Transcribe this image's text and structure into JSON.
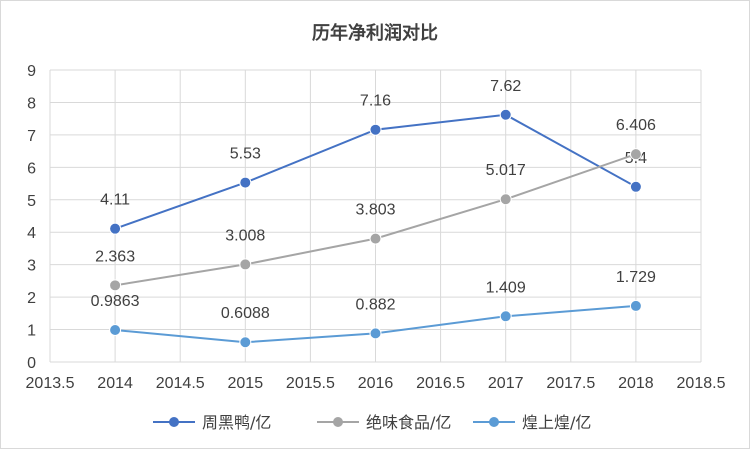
{
  "chart_data": {
    "type": "scatter",
    "title": "历年净利润对比",
    "xlabel": "",
    "ylabel": "",
    "xlim": [
      2013.5,
      2018.5
    ],
    "ylim": [
      0,
      9
    ],
    "x_ticks": [
      "2013.5",
      "2014",
      "2014.5",
      "2015",
      "2015.5",
      "2016",
      "2016.5",
      "2017",
      "2017.5",
      "2018",
      "2018.5"
    ],
    "y_ticks": [
      "0",
      "1",
      "2",
      "3",
      "4",
      "5",
      "6",
      "7",
      "8",
      "9"
    ],
    "grid": "vertical and horizontal",
    "legend_position": "bottom",
    "series": [
      {
        "name": "周黑鸭/亿",
        "color": "#4472c4",
        "x": [
          2014,
          2015,
          2016,
          2017,
          2018
        ],
        "values": [
          4.11,
          5.53,
          7.16,
          7.62,
          5.4
        ],
        "labels": [
          "4.11",
          "5.53",
          "7.16",
          "7.62",
          "5.4"
        ]
      },
      {
        "name": "绝味食品/亿",
        "color": "#a5a5a5",
        "x": [
          2014,
          2015,
          2016,
          2017,
          2018
        ],
        "values": [
          2.363,
          3.008,
          3.803,
          5.017,
          6.406
        ],
        "labels": [
          "2.363",
          "3.008",
          "3.803",
          "5.017",
          "6.406"
        ]
      },
      {
        "name": "煌上煌/亿",
        "color": "#5b9bd5",
        "x": [
          2014,
          2015,
          2016,
          2017,
          2018
        ],
        "values": [
          0.9863,
          0.6088,
          0.882,
          1.409,
          1.729
        ],
        "labels": [
          "0.9863",
          "0.6088",
          "0.882",
          "1.409",
          "1.729"
        ]
      }
    ]
  }
}
